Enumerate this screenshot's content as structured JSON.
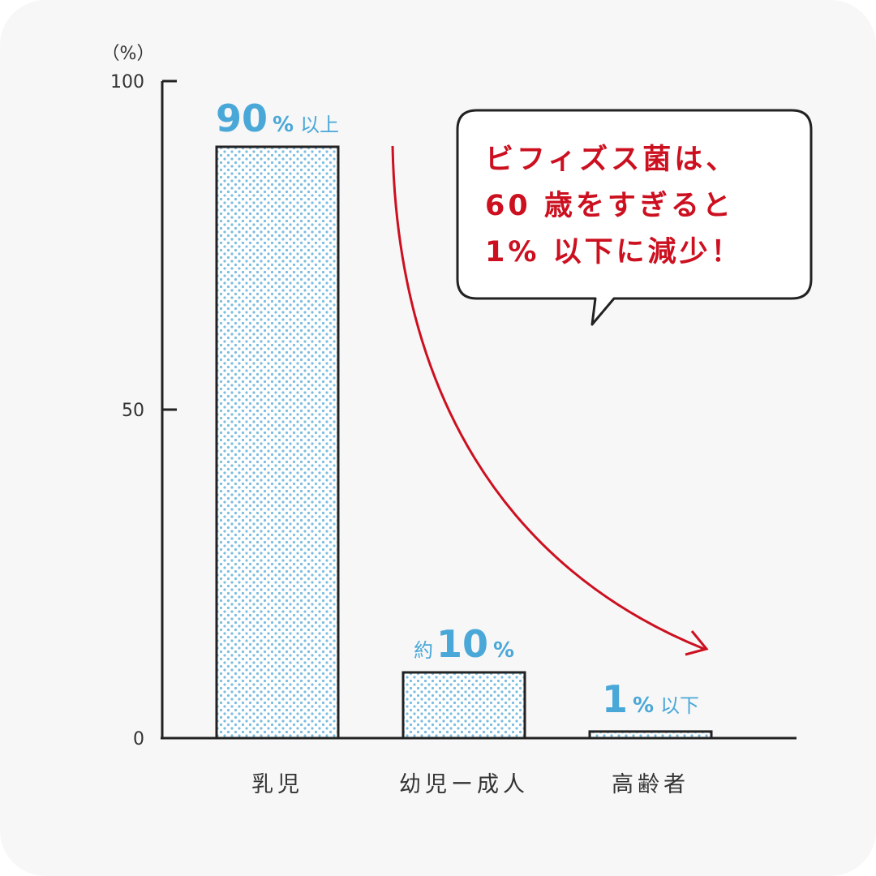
{
  "chart_data": {
    "type": "bar",
    "y_unit_label": "（%）",
    "ylim": [
      0,
      100
    ],
    "y_ticks": [
      "0",
      "50",
      "100"
    ],
    "categories": [
      "乳児",
      "幼児ー成人",
      "高齢者"
    ],
    "values": [
      90,
      10,
      1
    ],
    "data_labels": [
      {
        "prefix": "",
        "number": "90",
        "suffix": "%",
        "qualifier": "以上"
      },
      {
        "prefix": "約",
        "number": "10",
        "suffix": "%",
        "qualifier": ""
      },
      {
        "prefix": "",
        "number": "1",
        "suffix": "%",
        "qualifier": "以下"
      }
    ],
    "annotation_lines": [
      "ビフィズス菌は、",
      "60 歳をすぎると",
      "1% 以下に減少！"
    ],
    "colors": {
      "bar_dot": "#7bbde0",
      "bar_outline": "#222222",
      "value_text": "#4aa8d8",
      "arrow": "#cc1020",
      "annotation_text": "#cc1020"
    }
  }
}
